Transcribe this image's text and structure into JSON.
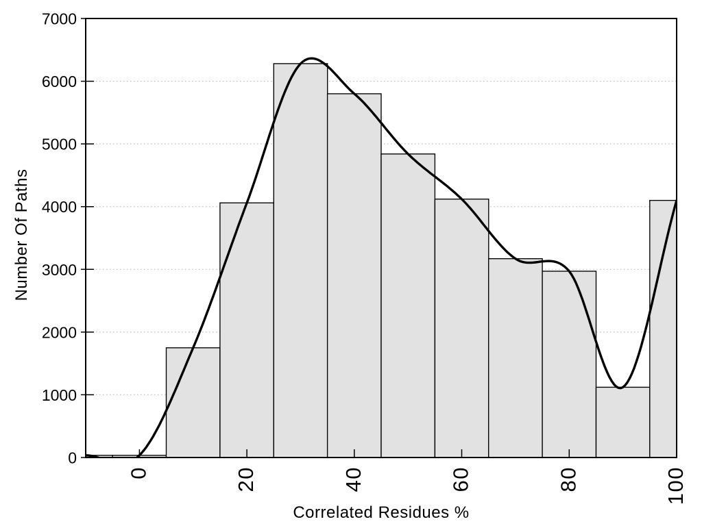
{
  "chart_data": {
    "type": "bar",
    "subtype": "histogram-with-smooth-curve",
    "title": "",
    "xlabel": "Correlated Residues %",
    "ylabel": "Number Of Paths",
    "xlim": [
      -10,
      100
    ],
    "ylim": [
      0,
      7000
    ],
    "x_ticks": [
      0,
      20,
      40,
      60,
      80,
      100
    ],
    "x_tick_labels": [
      "0",
      "20",
      "40",
      "60",
      "80",
      "100"
    ],
    "x_tick_labels_rotated_90": true,
    "y_ticks": [
      0,
      1000,
      2000,
      3000,
      4000,
      5000,
      6000,
      7000
    ],
    "y_tick_labels": [
      "0",
      "1000",
      "2000",
      "3000",
      "4000",
      "5000",
      "6000",
      "7000"
    ],
    "grid_horizontal_dotted_at": [
      1000,
      2000,
      3000,
      4000,
      5000,
      6000
    ],
    "legend": "none",
    "bins": {
      "width": 10,
      "centers": [
        -10,
        0,
        10,
        20,
        30,
        40,
        50,
        60,
        70,
        80,
        90,
        100
      ],
      "values": [
        35,
        35,
        1750,
        4060,
        6280,
        5800,
        4840,
        4120,
        3170,
        2970,
        1120,
        4100
      ]
    },
    "series": [
      {
        "name": "histogram-bars",
        "type": "bar",
        "values": [
          35,
          35,
          1750,
          4060,
          6280,
          5800,
          4840,
          4120,
          3170,
          2970,
          1120,
          4100
        ]
      },
      {
        "name": "smooth-spline-curve",
        "type": "line",
        "x": [
          -10,
          0,
          10,
          20,
          30,
          40,
          50,
          60,
          70,
          80,
          90,
          100
        ],
        "y": [
          35,
          35,
          1750,
          4060,
          6280,
          5800,
          4840,
          4120,
          3170,
          2970,
          1120,
          4100
        ]
      }
    ],
    "colors": {
      "bar_fill": "#e2e2e2",
      "bar_stroke": "#000000",
      "curve": "#000000",
      "grid": "#c2c2c2",
      "axis": "#000000",
      "background": "#ffffff",
      "text": "#000000"
    }
  }
}
